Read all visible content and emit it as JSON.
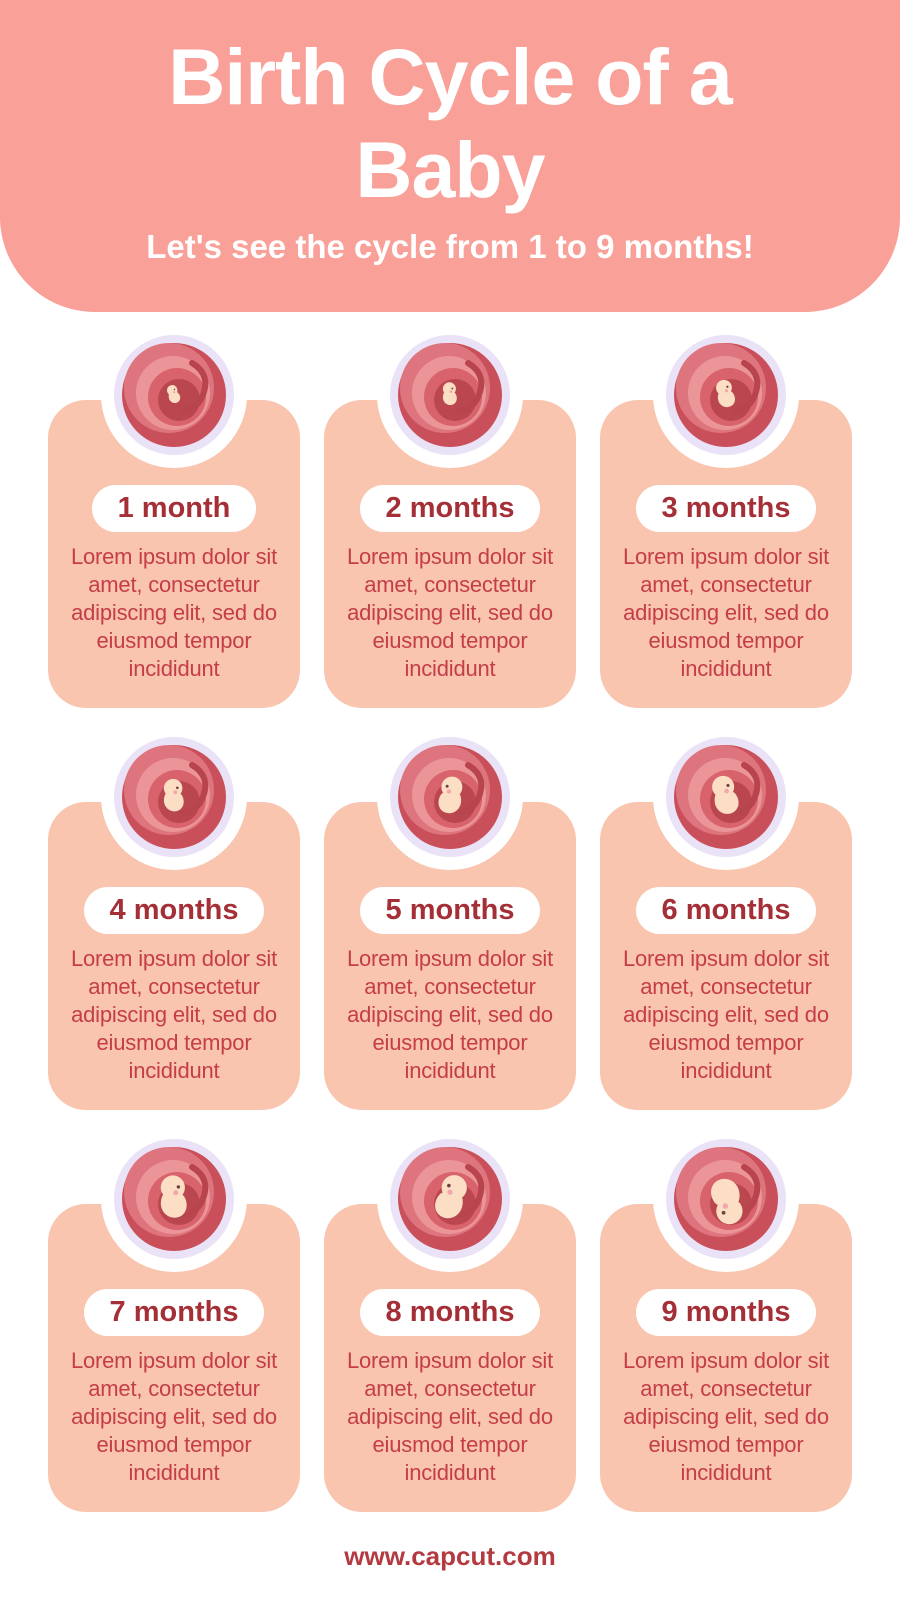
{
  "header": {
    "title": "Birth Cycle of a Baby",
    "subtitle": "Let's see the cycle from 1 to 9 months!"
  },
  "cards": [
    {
      "label": "1 month",
      "body": "Lorem ipsum dolor sit amet, consectetur adipiscing elit, sed do eiusmod tempor incididunt",
      "illustration": "embryo-in-womb-month-1",
      "fetus_scale": 0.5,
      "fetus_rotate": -15,
      "fetus_flip": false
    },
    {
      "label": "2 months",
      "body": "Lorem ipsum dolor sit amet, consectetur adipiscing elit, sed do eiusmod tempor incididunt",
      "illustration": "fetus-in-womb-month-2",
      "fetus_scale": 0.62,
      "fetus_rotate": 0,
      "fetus_flip": false
    },
    {
      "label": "3 months",
      "body": "Lorem ipsum dolor sit amet, consectetur adipiscing elit, sed do eiusmod tempor incididunt",
      "illustration": "fetus-in-womb-month-3",
      "fetus_scale": 0.75,
      "fetus_rotate": -10,
      "fetus_flip": false
    },
    {
      "label": "4 months",
      "body": "Lorem ipsum dolor sit amet, consectetur adipiscing elit, sed do eiusmod tempor incididunt",
      "illustration": "fetus-in-womb-month-4",
      "fetus_scale": 0.88,
      "fetus_rotate": 0,
      "fetus_flip": false
    },
    {
      "label": "5 months",
      "body": "Lorem ipsum dolor sit amet, consectetur adipiscing elit, sed do eiusmod tempor incididunt",
      "illustration": "fetus-in-womb-month-5",
      "fetus_scale": 1.0,
      "fetus_rotate": 5,
      "fetus_flip": true
    },
    {
      "label": "6 months",
      "body": "Lorem ipsum dolor sit amet, consectetur adipiscing elit, sed do eiusmod tempor incididunt",
      "illustration": "fetus-in-womb-month-6",
      "fetus_scale": 1.05,
      "fetus_rotate": -10,
      "fetus_flip": false
    },
    {
      "label": "7 months",
      "body": "Lorem ipsum dolor sit amet, consectetur adipiscing elit, sed do eiusmod tempor incididunt",
      "illustration": "fetus-in-womb-month-7",
      "fetus_scale": 1.15,
      "fetus_rotate": 0,
      "fetus_flip": false
    },
    {
      "label": "8 months",
      "body": "Lorem ipsum dolor sit amet, consectetur adipiscing elit, sed do eiusmod tempor incididunt",
      "illustration": "fetus-in-womb-month-8",
      "fetus_scale": 1.2,
      "fetus_rotate": 15,
      "fetus_flip": true
    },
    {
      "label": "9 months",
      "body": "Lorem ipsum dolor sit amet, consectetur adipiscing elit, sed do eiusmod tempor incididunt",
      "illustration": "fetus-in-womb-month-9",
      "fetus_scale": 1.25,
      "fetus_rotate": 170,
      "fetus_flip": false
    }
  ],
  "footer": {
    "url": "www.capcut.com"
  },
  "colors": {
    "page-bg": "#FFFFFF",
    "header-bg": "#F9A099",
    "header-text": "#FFFFFF",
    "card-bg": "#F9C5AE",
    "pill-bg": "#FFFFFF",
    "pill-text": "#A52F36",
    "body-text": "#C43D49",
    "footer-text": "#B23A40"
  },
  "palette": {
    "notch": "#FFFFFF",
    "lavender": "#EAE2F6",
    "womb_rings": [
      "#C9505A",
      "#DE747D",
      "#EC9599",
      "#D8636C",
      "#BA4750"
    ],
    "swirl": "#B8444D",
    "skin": "#FBDEC4",
    "cheek": "#F2A7AE",
    "eye": "#6B4440"
  }
}
